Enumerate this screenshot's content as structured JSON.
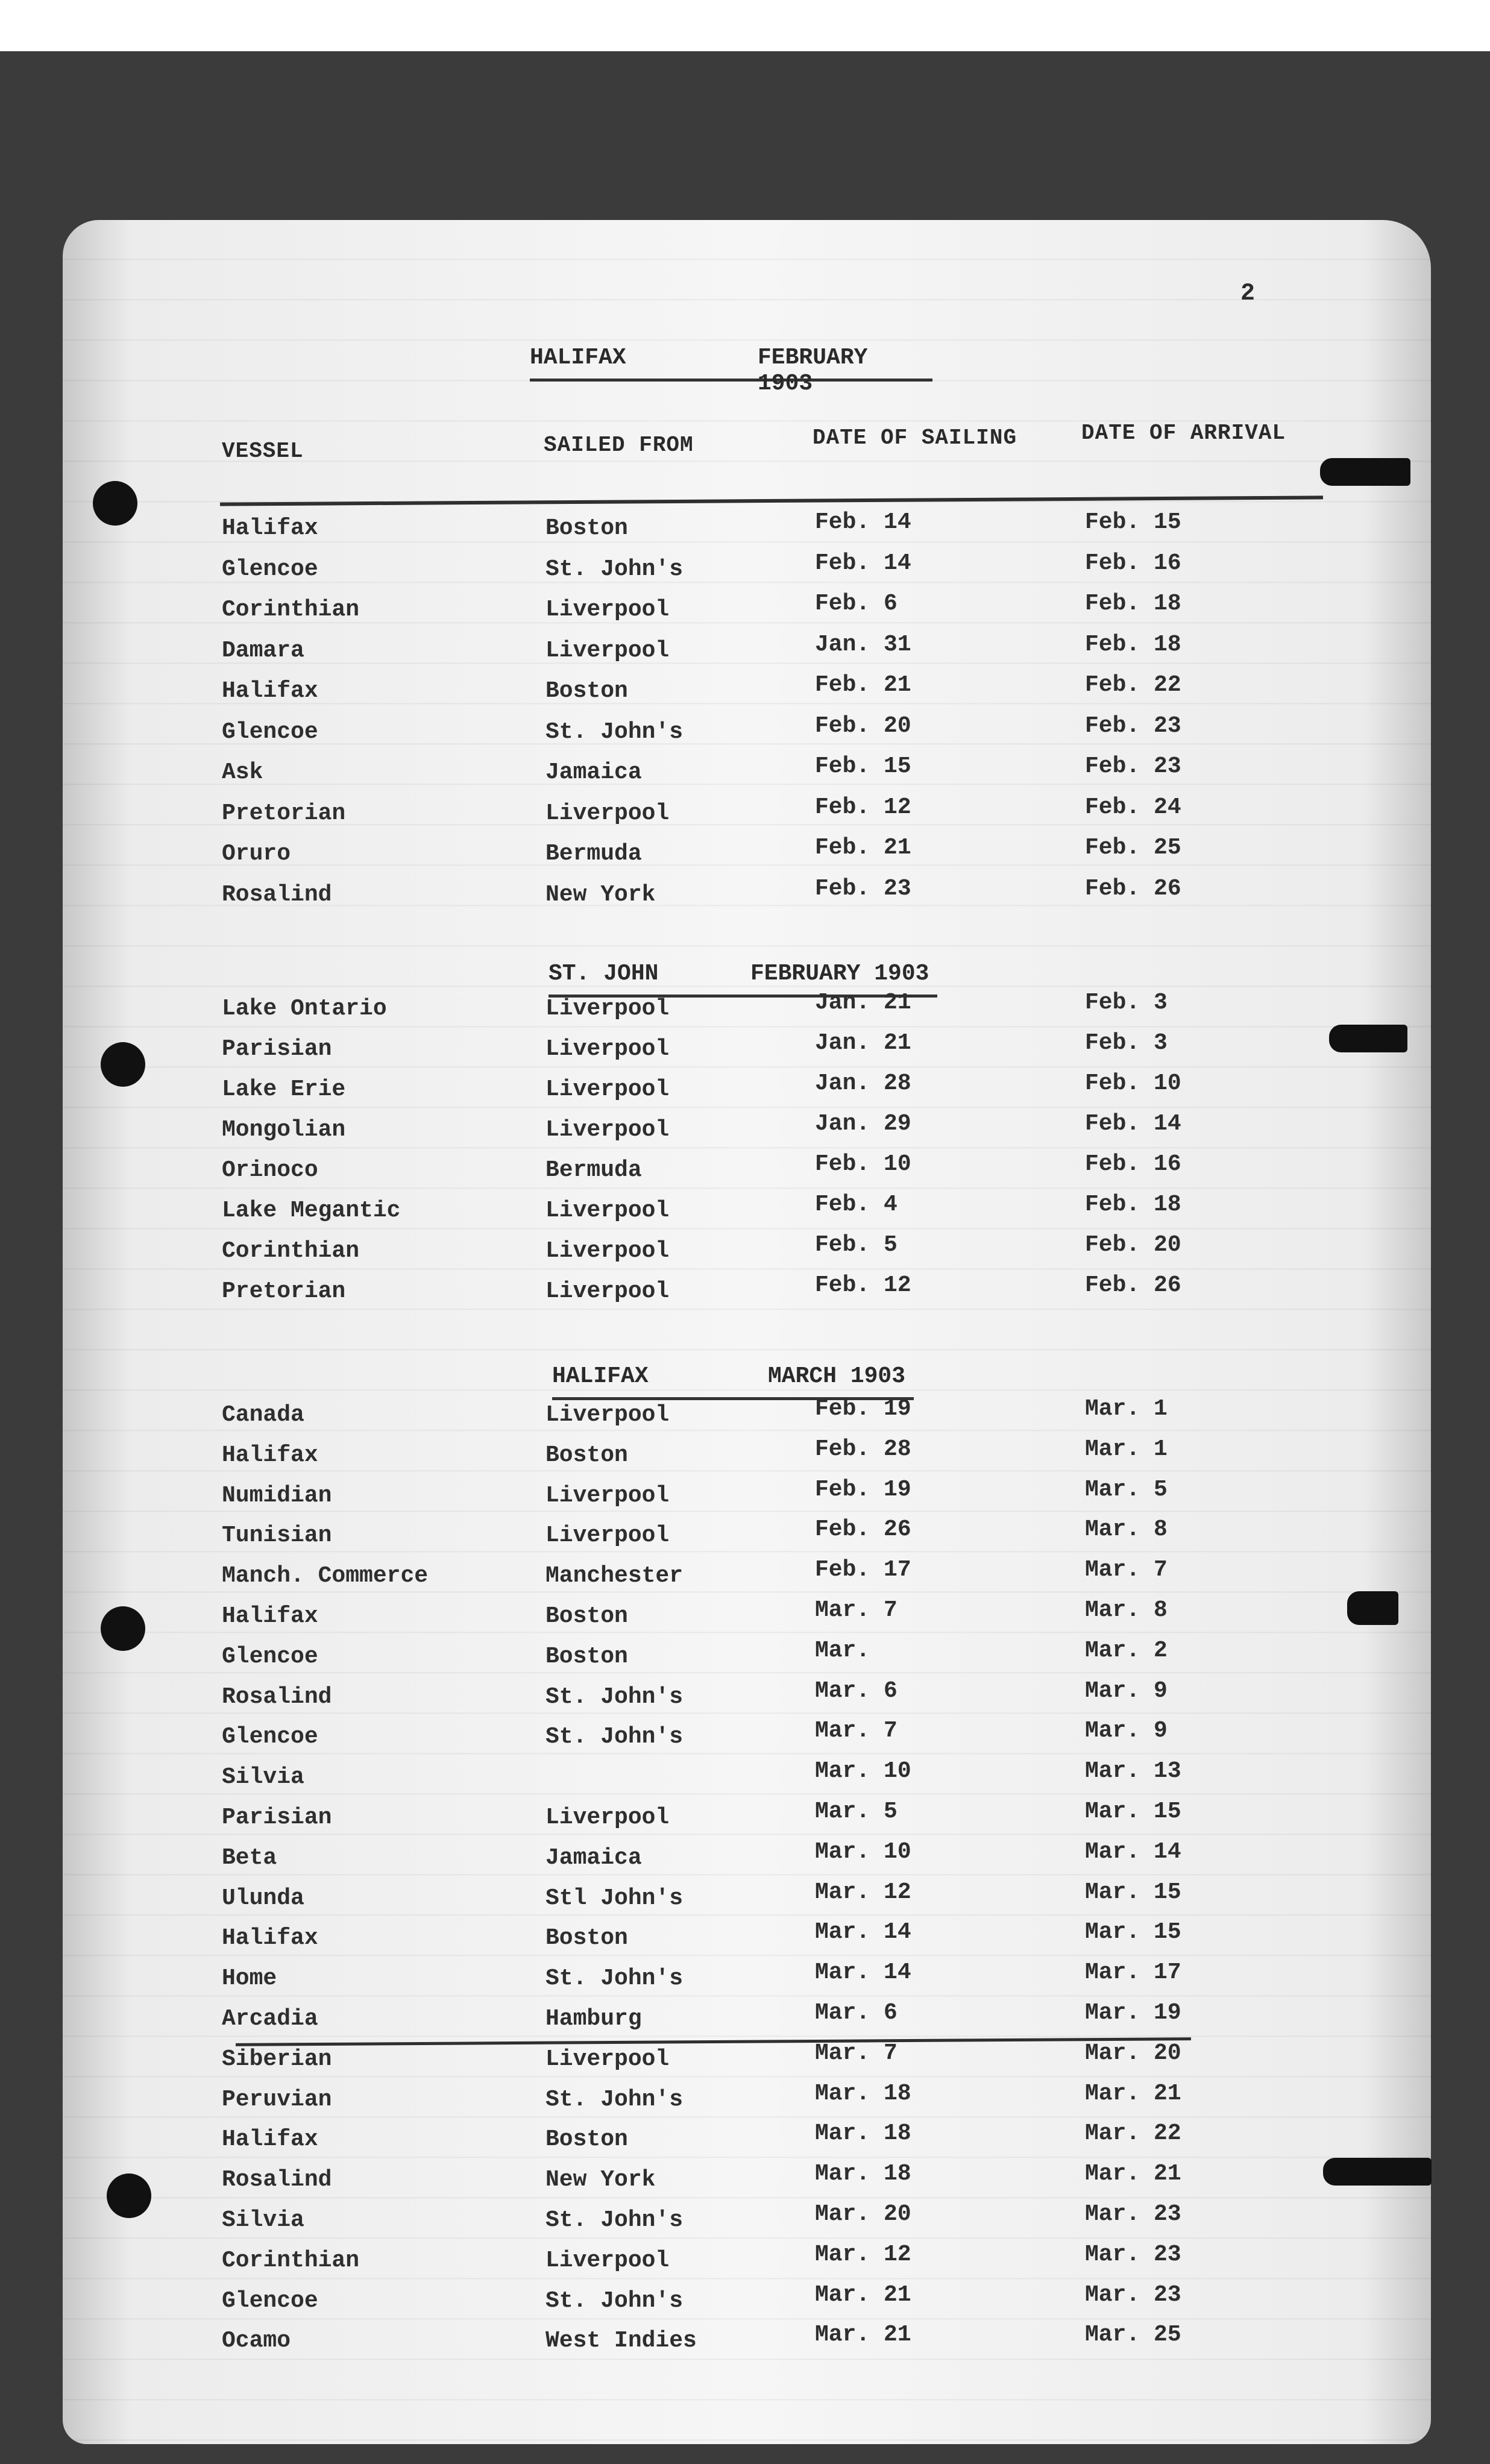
{
  "page_number": "2",
  "headers": {
    "vessel": "VESSEL",
    "sailed_from": "SAILED FROM",
    "date_of_sailing": "DATE OF SAILING",
    "date_of_arrival": "DATE OF ARRIVAL"
  },
  "sections": [
    {
      "place": "HALIFAX",
      "month": "FEBRUARY 1903",
      "rows": [
        [
          "Halifax",
          "Boston",
          "Feb. 14",
          "Feb. 15"
        ],
        [
          "Glencoe",
          "St. John's",
          "Feb. 14",
          "Feb. 16"
        ],
        [
          "Corinthian",
          "Liverpool",
          "Feb. 6",
          "Feb. 18"
        ],
        [
          "Damara",
          "Liverpool",
          "Jan. 31",
          "Feb. 18"
        ],
        [
          "Halifax",
          "Boston",
          "Feb. 21",
          "Feb. 22"
        ],
        [
          "Glencoe",
          "St. John's",
          "Feb. 20",
          "Feb. 23"
        ],
        [
          "Ask",
          "Jamaica",
          "Feb. 15",
          "Feb. 23"
        ],
        [
          "Pretorian",
          "Liverpool",
          "Feb. 12",
          "Feb. 24"
        ],
        [
          "Oruro",
          "Bermuda",
          "Feb. 21",
          "Feb. 25"
        ],
        [
          "Rosalind",
          "New York",
          "Feb. 23",
          "Feb. 26"
        ]
      ]
    },
    {
      "place": "ST. JOHN",
      "month": "FEBRUARY 1903",
      "rows": [
        [
          "Lake Ontario",
          "Liverpool",
          "Jan. 21",
          "Feb. 3"
        ],
        [
          "Parisian",
          "Liverpool",
          "Jan. 21",
          "Feb. 3"
        ],
        [
          "Lake Erie",
          "Liverpool",
          "Jan. 28",
          "Feb. 10"
        ],
        [
          "Mongolian",
          "Liverpool",
          "Jan. 29",
          "Feb. 14"
        ],
        [
          "Orinoco",
          "Bermuda",
          "Feb. 10",
          "Feb. 16"
        ],
        [
          "Lake Megantic",
          "Liverpool",
          "Feb. 4",
          "Feb. 18"
        ],
        [
          "Corinthian",
          "Liverpool",
          "Feb. 5",
          "Feb. 20"
        ],
        [
          "Pretorian",
          "Liverpool",
          "Feb. 12",
          "Feb. 26"
        ]
      ]
    },
    {
      "place": "HALIFAX",
      "month": "MARCH 1903",
      "rows": [
        [
          "Canada",
          "Liverpool",
          "Feb. 19",
          "Mar. 1"
        ],
        [
          "Halifax",
          "Boston",
          "Feb. 28",
          "Mar. 1"
        ],
        [
          "Numidian",
          "Liverpool",
          "Feb. 19",
          "Mar. 5"
        ],
        [
          "Tunisian",
          "Liverpool",
          "Feb. 26",
          "Mar. 8"
        ],
        [
          "Manch. Commerce",
          "Manchester",
          "Feb. 17",
          "Mar. 7"
        ],
        [
          "Halifax",
          "Boston",
          "Mar. 7",
          "Mar. 8"
        ],
        [
          "Glencoe",
          "Boston",
          "Mar.",
          "Mar. 2"
        ],
        [
          "Rosalind",
          "St. John's",
          "Mar. 6",
          "Mar. 9"
        ],
        [
          "Glencoe",
          "St. John's",
          "Mar. 7",
          "Mar. 9"
        ],
        [
          "Silvia",
          "",
          "Mar. 10",
          "Mar. 13"
        ],
        [
          "Parisian",
          "Liverpool",
          "Mar. 5",
          "Mar. 15"
        ],
        [
          "Beta",
          "Jamaica",
          "Mar. 10",
          "Mar. 14"
        ],
        [
          "Ulunda",
          "Stl John's",
          "Mar. 12",
          "Mar. 15"
        ],
        [
          "Halifax",
          "Boston",
          "Mar. 14",
          "Mar. 15"
        ],
        [
          "Home",
          "St. John's",
          "Mar. 14",
          "Mar. 17"
        ],
        [
          "Arcadia",
          "Hamburg",
          "Mar. 6",
          "Mar. 19"
        ],
        [
          "Siberian",
          "Liverpool",
          "Mar. 7",
          "Mar. 20"
        ],
        [
          "Peruvian",
          "St. John's",
          "Mar. 18",
          "Mar. 21"
        ],
        [
          "Halifax",
          "Boston",
          "Mar. 18",
          "Mar. 22"
        ],
        [
          "Rosalind",
          "New York",
          "Mar. 18",
          "Mar. 21"
        ],
        [
          "Silvia",
          "St. John's",
          "Mar. 20",
          "Mar. 23"
        ],
        [
          "Corinthian",
          "Liverpool",
          "Mar. 12",
          "Mar. 23"
        ],
        [
          "Glencoe",
          "St. John's",
          "Mar. 21",
          "Mar. 23"
        ],
        [
          "Ocamo",
          "West Indies",
          "Mar. 21",
          "Mar. 25"
        ]
      ]
    }
  ]
}
